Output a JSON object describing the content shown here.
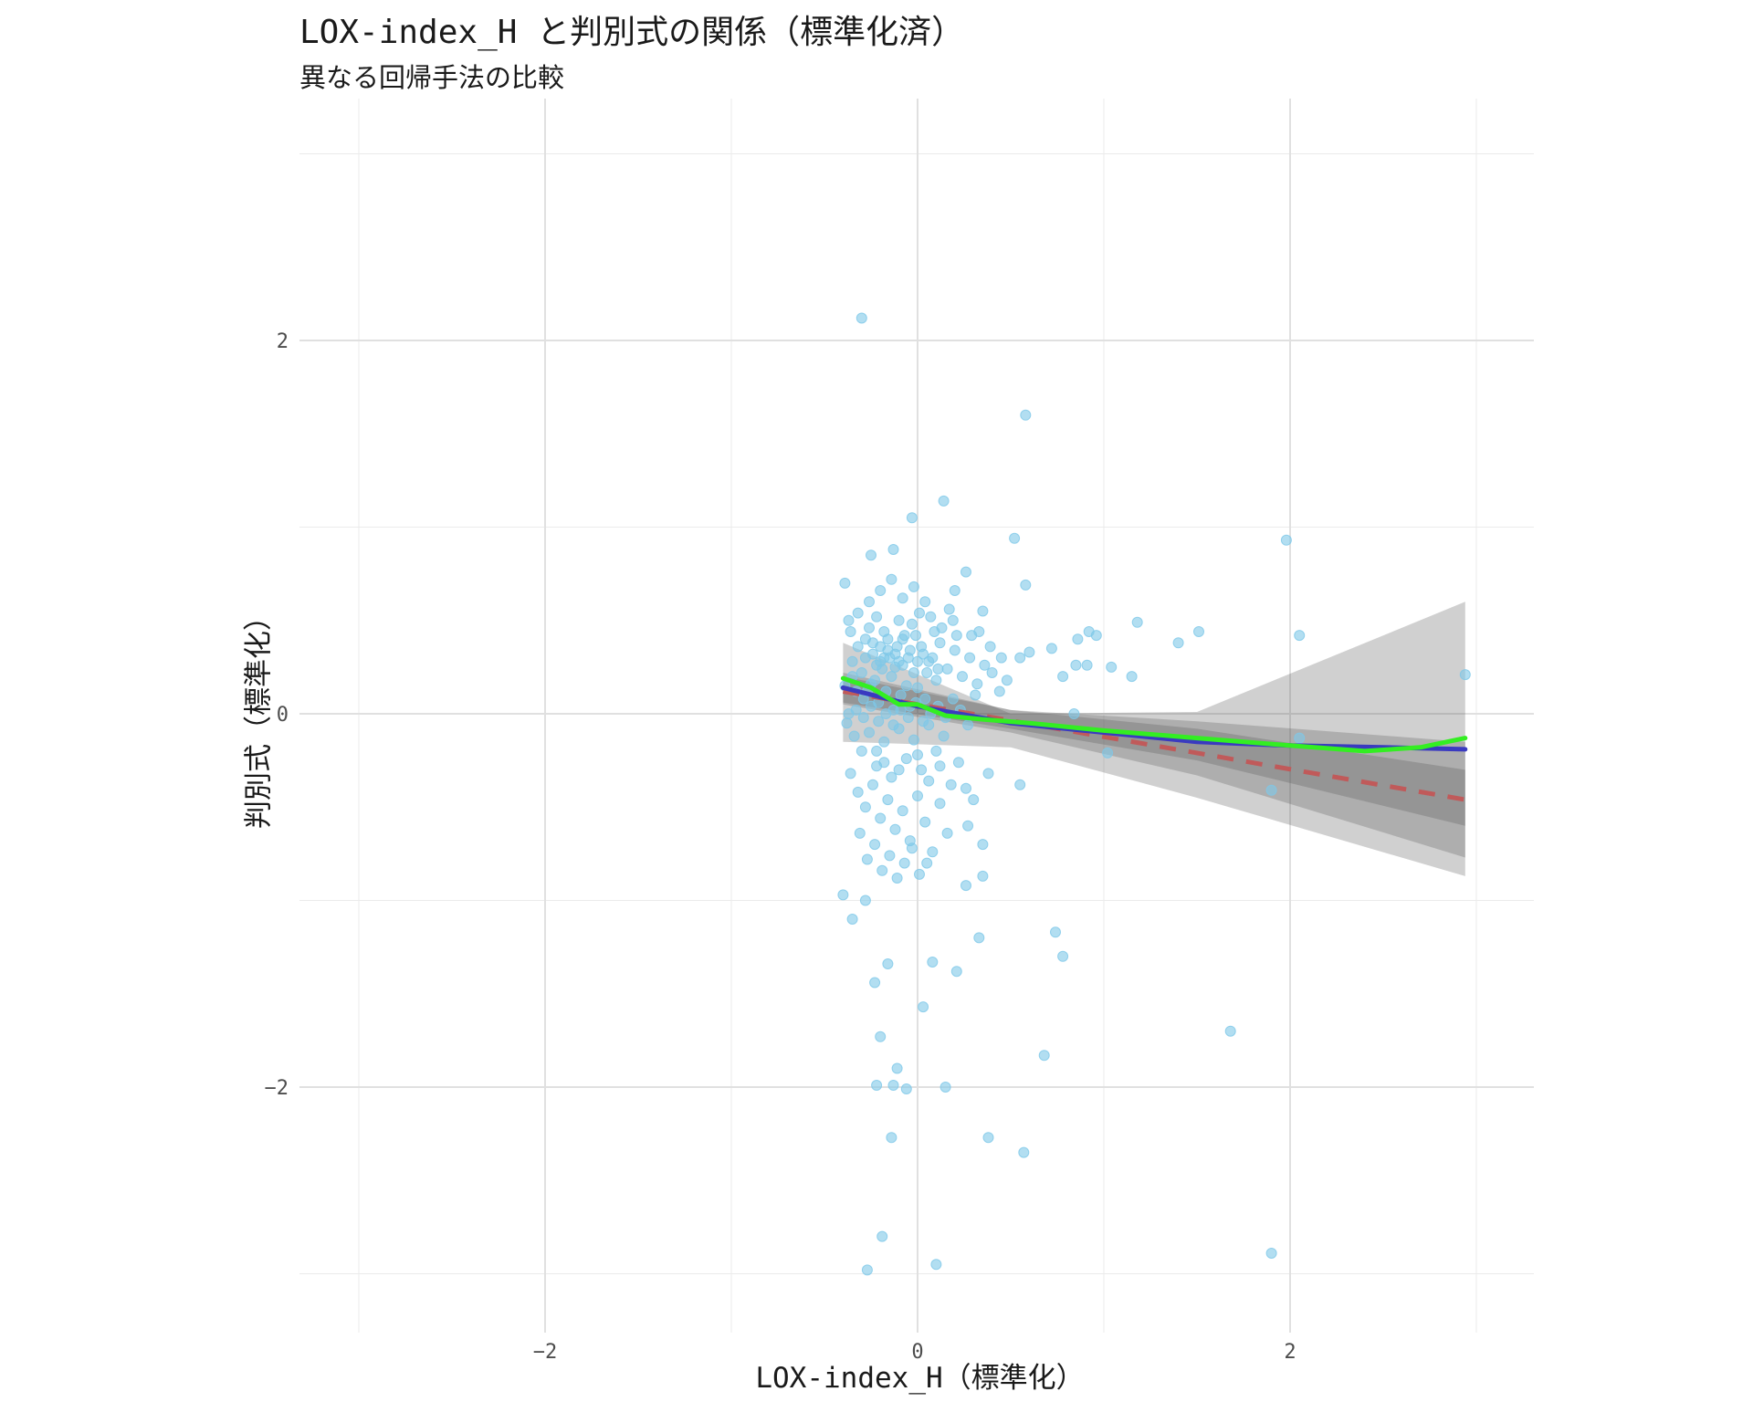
{
  "chart_data": {
    "type": "scatter",
    "title": "LOX-index_H と判別式の関係（標準化済）",
    "subtitle": "異なる回帰手法の比較",
    "xlabel": "LOX-index_H（標準化）",
    "ylabel": "判別式（標準化）",
    "xlim": [
      -3.0,
      3.3
    ],
    "ylim": [
      -3.3,
      3.2
    ],
    "x_ticks": [
      -2,
      0,
      2
    ],
    "y_ticks": [
      -2,
      0,
      2
    ],
    "x_tick_labels": [
      "−2",
      "0",
      "2"
    ],
    "y_tick_labels": [
      "−2",
      "0",
      "2"
    ],
    "grid": true,
    "legend": "none",
    "point_color": "#7ec8e8",
    "points": [
      [
        -0.3,
        2.12
      ],
      [
        0.58,
        1.6
      ],
      [
        0.14,
        1.14
      ],
      [
        -0.03,
        1.05
      ],
      [
        0.52,
        0.94
      ],
      [
        1.98,
        0.93
      ],
      [
        0.58,
        0.69
      ],
      [
        1.18,
        0.49
      ],
      [
        1.51,
        0.44
      ],
      [
        2.05,
        0.42
      ],
      [
        1.4,
        0.38
      ],
      [
        0.92,
        0.44
      ],
      [
        0.96,
        0.42
      ],
      [
        0.86,
        0.4
      ],
      [
        0.72,
        0.35
      ],
      [
        1.04,
        0.25
      ],
      [
        1.15,
        0.2
      ],
      [
        0.85,
        0.26
      ],
      [
        0.78,
        0.2
      ],
      [
        0.91,
        0.26
      ],
      [
        2.94,
        0.21
      ],
      [
        0.6,
        0.33
      ],
      [
        0.55,
        0.3
      ],
      [
        0.35,
        0.55
      ],
      [
        0.26,
        0.76
      ],
      [
        0.2,
        0.66
      ],
      [
        -0.39,
        0.7
      ],
      [
        -0.25,
        0.85
      ],
      [
        -0.13,
        0.88
      ],
      [
        -0.39,
        0.15
      ],
      [
        0.84,
        0.0
      ],
      [
        1.02,
        -0.21
      ],
      [
        2.05,
        -0.13
      ],
      [
        1.9,
        -0.41
      ],
      [
        0.55,
        -0.38
      ],
      [
        0.38,
        -0.32
      ],
      [
        0.35,
        -0.7
      ],
      [
        0.27,
        -0.6
      ],
      [
        0.35,
        -0.87
      ],
      [
        0.26,
        -0.92
      ],
      [
        -0.4,
        -0.97
      ],
      [
        -0.35,
        -1.1
      ],
      [
        -0.28,
        -1.0
      ],
      [
        0.74,
        -1.17
      ],
      [
        0.78,
        -1.3
      ],
      [
        0.33,
        -1.2
      ],
      [
        0.21,
        -1.38
      ],
      [
        0.08,
        -1.33
      ],
      [
        -0.23,
        -1.44
      ],
      [
        -0.16,
        -1.34
      ],
      [
        1.68,
        -1.7
      ],
      [
        0.68,
        -1.83
      ],
      [
        -0.2,
        -1.73
      ],
      [
        0.03,
        -1.57
      ],
      [
        -0.22,
        -1.99
      ],
      [
        -0.13,
        -1.99
      ],
      [
        -0.06,
        -2.01
      ],
      [
        0.15,
        -2.0
      ],
      [
        -0.11,
        -1.9
      ],
      [
        -0.14,
        -2.27
      ],
      [
        0.38,
        -2.27
      ],
      [
        0.57,
        -2.35
      ],
      [
        -0.19,
        -2.8
      ],
      [
        -0.27,
        -2.98
      ],
      [
        0.1,
        -2.95
      ],
      [
        1.9,
        -2.89
      ],
      [
        -0.28,
        0.3
      ],
      [
        -0.24,
        0.38
      ],
      [
        -0.2,
        0.28
      ],
      [
        -0.16,
        0.34
      ],
      [
        -0.12,
        0.25
      ],
      [
        -0.08,
        0.4
      ],
      [
        -0.05,
        0.3
      ],
      [
        -0.02,
        0.22
      ],
      [
        0.02,
        0.36
      ],
      [
        0.06,
        0.28
      ],
      [
        0.1,
        0.18
      ],
      [
        -0.3,
        0.22
      ],
      [
        -0.26,
        0.46
      ],
      [
        -0.22,
        0.52
      ],
      [
        -0.18,
        0.44
      ],
      [
        -0.14,
        0.2
      ],
      [
        -0.1,
        0.5
      ],
      [
        -0.06,
        0.15
      ],
      [
        -0.32,
        0.36
      ],
      [
        -0.35,
        0.28
      ],
      [
        -0.36,
        0.44
      ],
      [
        -0.33,
        0.12
      ],
      [
        -0.29,
        0.08
      ],
      [
        -0.25,
        0.16
      ],
      [
        -0.21,
        0.06
      ],
      [
        -0.17,
        0.12
      ],
      [
        -0.13,
        0.02
      ],
      [
        -0.09,
        0.1
      ],
      [
        -0.04,
        0.04
      ],
      [
        0.0,
        0.14
      ],
      [
        0.04,
        0.08
      ],
      [
        0.08,
        0.3
      ],
      [
        0.12,
        0.38
      ],
      [
        0.16,
        0.24
      ],
      [
        0.2,
        0.34
      ],
      [
        0.24,
        0.2
      ],
      [
        0.28,
        0.3
      ],
      [
        0.32,
        0.16
      ],
      [
        0.36,
        0.26
      ],
      [
        0.4,
        0.22
      ],
      [
        0.44,
        0.12
      ],
      [
        0.48,
        0.18
      ],
      [
        0.13,
        0.46
      ],
      [
        0.17,
        0.56
      ],
      [
        0.21,
        0.42
      ],
      [
        0.04,
        0.6
      ],
      [
        -0.02,
        0.68
      ],
      [
        -0.08,
        0.62
      ],
      [
        -0.14,
        0.72
      ],
      [
        -0.2,
        0.66
      ],
      [
        -0.26,
        0.6
      ],
      [
        -0.32,
        0.54
      ],
      [
        -0.37,
        0.5
      ],
      [
        0.07,
        0.52
      ],
      [
        -0.38,
        -0.05
      ],
      [
        -0.34,
        -0.12
      ],
      [
        -0.3,
        -0.2
      ],
      [
        -0.26,
        -0.1
      ],
      [
        -0.22,
        -0.28
      ],
      [
        -0.18,
        -0.15
      ],
      [
        -0.14,
        -0.34
      ],
      [
        -0.1,
        -0.08
      ],
      [
        -0.06,
        -0.24
      ],
      [
        -0.02,
        -0.14
      ],
      [
        0.02,
        -0.3
      ],
      [
        0.06,
        -0.06
      ],
      [
        0.1,
        -0.2
      ],
      [
        0.14,
        -0.12
      ],
      [
        0.18,
        -0.38
      ],
      [
        0.22,
        -0.26
      ],
      [
        -0.36,
        -0.32
      ],
      [
        -0.32,
        -0.42
      ],
      [
        -0.28,
        -0.5
      ],
      [
        -0.24,
        -0.38
      ],
      [
        -0.2,
        -0.56
      ],
      [
        -0.16,
        -0.46
      ],
      [
        -0.12,
        -0.62
      ],
      [
        -0.08,
        -0.52
      ],
      [
        -0.04,
        -0.68
      ],
      [
        0.0,
        -0.44
      ],
      [
        0.04,
        -0.58
      ],
      [
        0.08,
        -0.74
      ],
      [
        0.12,
        -0.48
      ],
      [
        0.16,
        -0.64
      ],
      [
        -0.31,
        -0.64
      ],
      [
        -0.27,
        -0.78
      ],
      [
        -0.23,
        -0.7
      ],
      [
        -0.19,
        -0.84
      ],
      [
        -0.15,
        -0.76
      ],
      [
        -0.11,
        -0.88
      ],
      [
        -0.07,
        -0.8
      ],
      [
        -0.03,
        -0.72
      ],
      [
        0.01,
        -0.86
      ],
      [
        0.05,
        -0.8
      ],
      [
        -0.37,
        0.0
      ],
      [
        -0.33,
        0.02
      ],
      [
        -0.29,
        -0.02
      ],
      [
        -0.25,
        0.04
      ],
      [
        -0.21,
        -0.04
      ],
      [
        -0.17,
        0.0
      ],
      [
        -0.13,
        -0.06
      ],
      [
        -0.09,
        0.02
      ],
      [
        -0.05,
        -0.02
      ],
      [
        -0.01,
        0.06
      ],
      [
        0.03,
        -0.04
      ],
      [
        0.07,
        0.0
      ],
      [
        0.11,
        0.04
      ],
      [
        0.15,
        -0.02
      ],
      [
        0.19,
        0.08
      ],
      [
        0.23,
        0.02
      ],
      [
        0.27,
        -0.06
      ],
      [
        0.31,
        0.1
      ],
      [
        -0.27,
        0.12
      ],
      [
        -0.23,
        0.18
      ],
      [
        -0.19,
        0.24
      ],
      [
        -0.15,
        0.3
      ],
      [
        -0.11,
        0.36
      ],
      [
        -0.07,
        0.42
      ],
      [
        -0.03,
        0.48
      ],
      [
        0.01,
        0.54
      ],
      [
        -0.24,
        0.32
      ],
      [
        -0.2,
        0.36
      ],
      [
        -0.16,
        0.4
      ],
      [
        -0.12,
        0.32
      ],
      [
        -0.08,
        0.26
      ],
      [
        -0.04,
        0.34
      ],
      [
        0.0,
        0.28
      ],
      [
        0.03,
        0.32
      ],
      [
        -0.28,
        0.4
      ],
      [
        -0.22,
        0.26
      ],
      [
        -0.18,
        0.3
      ],
      [
        -0.1,
        0.28
      ],
      [
        0.11,
        0.24
      ],
      [
        0.05,
        0.22
      ],
      [
        -0.35,
        0.2
      ],
      [
        -0.01,
        0.42
      ],
      [
        0.09,
        0.44
      ],
      [
        0.19,
        0.5
      ],
      [
        0.29,
        0.42
      ],
      [
        0.39,
        0.36
      ],
      [
        0.45,
        0.3
      ],
      [
        0.33,
        0.44
      ],
      [
        -0.22,
        -0.2
      ],
      [
        -0.18,
        -0.26
      ],
      [
        -0.1,
        -0.3
      ],
      [
        0.0,
        -0.22
      ],
      [
        0.06,
        -0.36
      ],
      [
        0.12,
        -0.28
      ],
      [
        0.26,
        -0.4
      ],
      [
        0.3,
        -0.46
      ]
    ],
    "series": [
      {
        "line_type": "linear",
        "color": "#c05a5a",
        "style": "dashed",
        "x": [
          -0.4,
          2.94
        ],
        "y": [
          0.12,
          -0.46
        ]
      },
      {
        "line_type": "smooth",
        "color": "#3a3ac0",
        "style": "solid",
        "x": [
          -0.4,
          0.0,
          0.5,
          1.0,
          1.5,
          2.0,
          2.5,
          2.94
        ],
        "y": [
          0.14,
          0.04,
          -0.05,
          -0.1,
          -0.15,
          -0.17,
          -0.18,
          -0.19
        ]
      },
      {
        "line_type": "loess",
        "color": "#33ee22",
        "style": "solid",
        "x": [
          -0.4,
          -0.25,
          -0.1,
          0.0,
          0.15,
          0.35,
          0.6,
          1.0,
          1.5,
          2.0,
          2.4,
          2.7,
          2.94
        ],
        "y": [
          0.19,
          0.14,
          0.05,
          0.05,
          -0.01,
          -0.03,
          -0.05,
          -0.09,
          -0.13,
          -0.17,
          -0.2,
          -0.18,
          -0.13
        ]
      }
    ],
    "bands": [
      {
        "x": [
          -0.4,
          0.5,
          1.5,
          2.94
        ],
        "lower": [
          -0.15,
          -0.18,
          -0.45,
          -0.87
        ],
        "upper": [
          0.38,
          0.0,
          0.01,
          0.6
        ]
      },
      {
        "x": [
          -0.4,
          0.5,
          1.5,
          2.94
        ],
        "lower": [
          0.05,
          -0.1,
          -0.33,
          -0.77
        ],
        "upper": [
          0.22,
          0.02,
          -0.04,
          -0.15
        ]
      },
      {
        "x": [
          -0.4,
          0.5,
          1.5,
          2.94
        ],
        "lower": [
          0.06,
          -0.08,
          -0.25,
          -0.6
        ],
        "upper": [
          0.2,
          0.02,
          -0.08,
          -0.3
        ]
      }
    ]
  }
}
